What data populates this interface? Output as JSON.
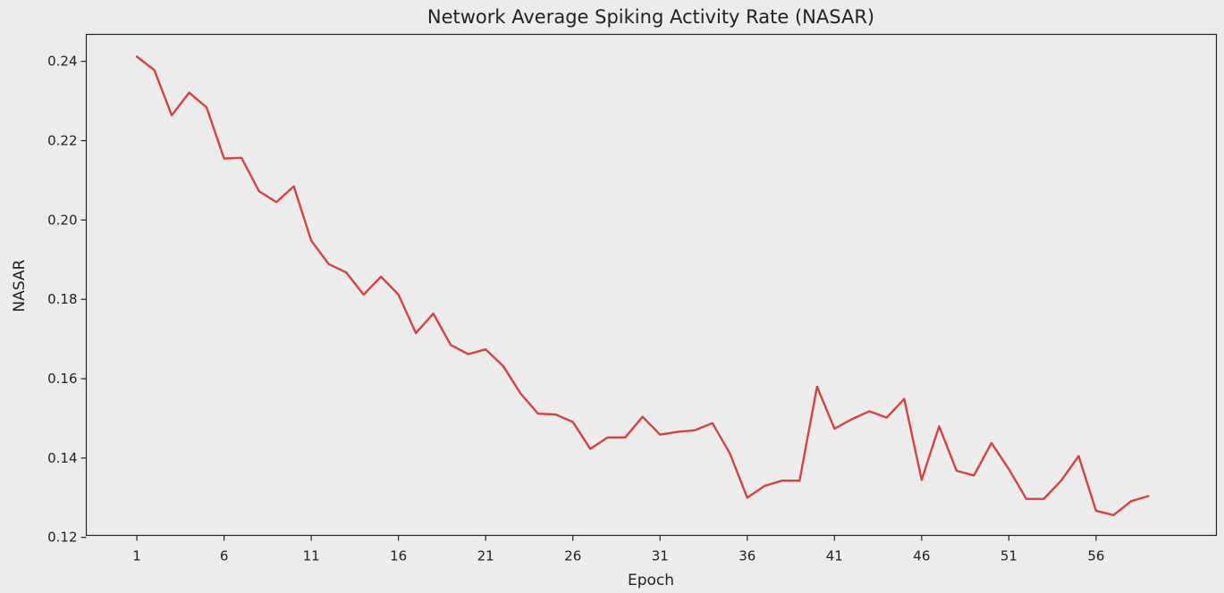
{
  "chart_data": {
    "type": "line",
    "title": "Network Average Spiking Activity Rate (NASAR)",
    "xlabel": "Epoch",
    "ylabel": "NASAR",
    "xlim": [
      -1.9,
      62.9
    ],
    "ylim": [
      0.1205,
      0.2468
    ],
    "grid": false,
    "background_color": "#ececec",
    "x_ticks": [
      1,
      6,
      11,
      16,
      21,
      26,
      31,
      36,
      41,
      46,
      51,
      56
    ],
    "y_ticks": [
      0.12,
      0.14,
      0.16,
      0.18,
      0.2,
      0.22,
      0.24
    ],
    "y_tick_labels": [
      "0.12",
      "0.14",
      "0.16",
      "0.18",
      "0.20",
      "0.22",
      "0.24"
    ],
    "series": [
      {
        "color": "#d94040",
        "x": [
          1,
          2,
          3,
          4,
          5,
          6,
          7,
          8,
          9,
          10,
          11,
          12,
          13,
          14,
          15,
          16,
          17,
          18,
          19,
          20,
          21,
          22,
          23,
          24,
          25,
          26,
          27,
          28,
          29,
          30,
          31,
          32,
          33,
          34,
          35,
          36,
          37,
          38,
          39,
          40,
          41,
          42,
          43,
          44,
          45,
          46,
          47,
          48,
          49,
          50,
          51,
          52,
          53,
          54,
          55,
          56,
          57,
          58,
          59
        ],
        "values": [
          0.2412,
          0.2378,
          0.2264,
          0.2321,
          0.2284,
          0.2155,
          0.2157,
          0.2073,
          0.2045,
          0.2085,
          0.1948,
          0.1889,
          0.1868,
          0.1812,
          0.1857,
          0.1812,
          0.1715,
          0.1764,
          0.1685,
          0.1662,
          0.1674,
          0.1632,
          0.1563,
          0.1512,
          0.151,
          0.1491,
          0.1423,
          0.1452,
          0.1452,
          0.1504,
          0.1459,
          0.1466,
          0.147,
          0.1488,
          0.1412,
          0.13,
          0.133,
          0.1343,
          0.1343,
          0.158,
          0.1474,
          0.1498,
          0.1518,
          0.1502,
          0.1549,
          0.1345,
          0.148,
          0.1368,
          0.1356,
          0.1438,
          0.1372,
          0.1297,
          0.1297,
          0.1343,
          0.1405,
          0.1267,
          0.1256,
          0.1291,
          0.1304
        ]
      }
    ]
  }
}
